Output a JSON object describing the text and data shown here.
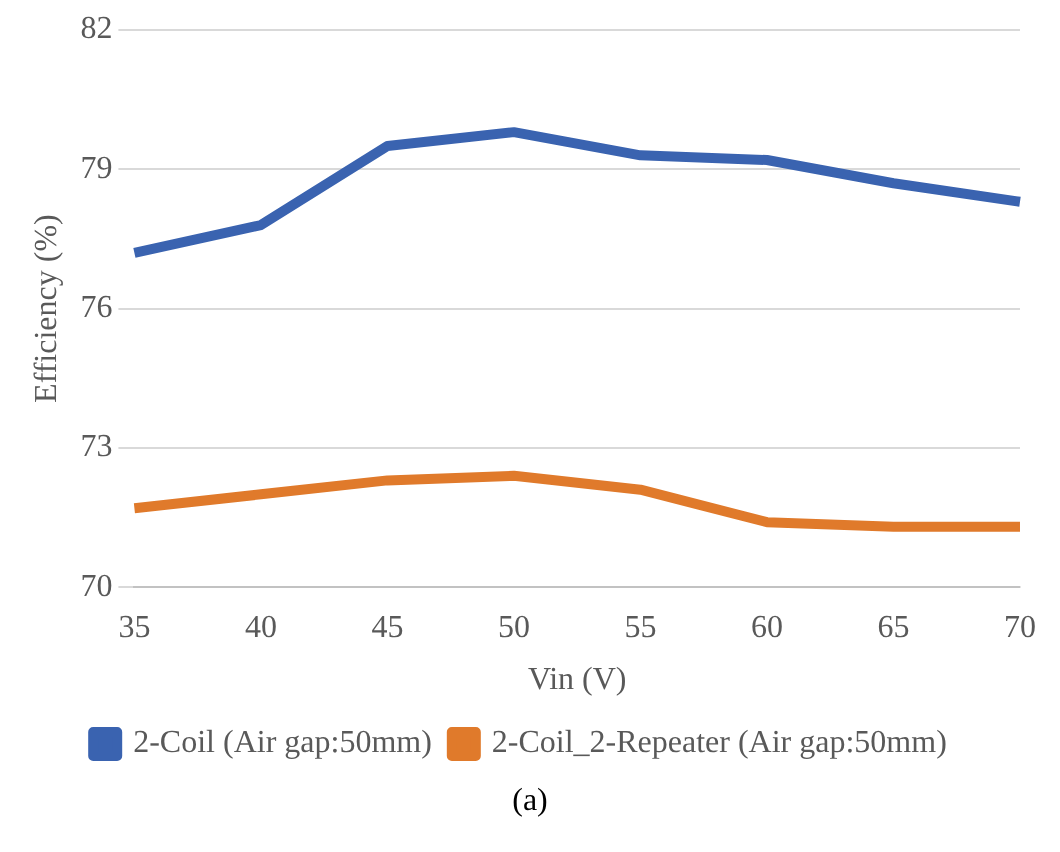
{
  "chart_data": {
    "type": "line",
    "xlabel": "Vin (V)",
    "ylabel": "Efficiency (%)",
    "categories": [
      "35",
      "40",
      "45",
      "50",
      "55",
      "60",
      "65",
      "70"
    ],
    "series": [
      {
        "name": "2-Coil (Air gap:50mm)",
        "color": "#3a63b0",
        "values": [
          77.2,
          77.8,
          79.5,
          79.8,
          79.3,
          79.2,
          78.7,
          78.3
        ]
      },
      {
        "name": "2-Coil_2-Repeater (Air gap:50mm)",
        "color": "#e07a2b",
        "values": [
          71.7,
          72.0,
          72.3,
          72.4,
          72.1,
          71.4,
          71.3,
          71.3
        ]
      }
    ],
    "ylim": [
      70,
      82
    ],
    "yticks": [
      70,
      73,
      76,
      79,
      82
    ],
    "grid": "y",
    "legend": "bottom",
    "marker": "none",
    "line_style": "solid",
    "annotations": [
      "(a)"
    ]
  }
}
